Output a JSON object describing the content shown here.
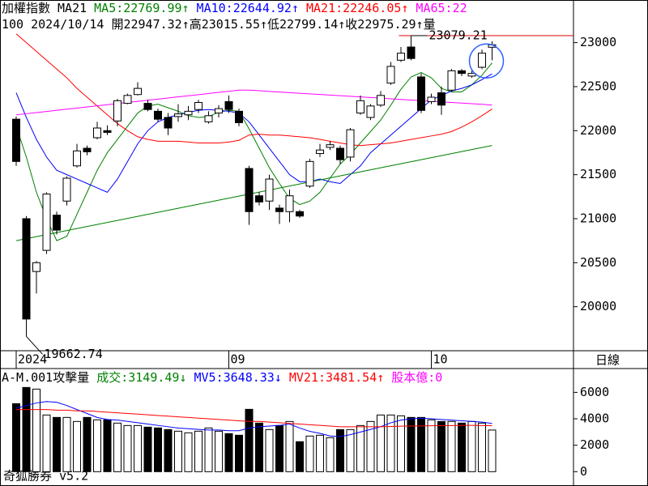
{
  "chart_data": [
    {
      "type": "candlestick",
      "title": "加權指數",
      "subtitle": "MA21",
      "info": "100 2024/10/14 開22947.32↑高23015.55↑低22799.14↑收22975.29↑量",
      "legend": [
        {
          "text": "MA5:22769.99↑",
          "color": "#008000"
        },
        {
          "text": "MA10:22644.92↑",
          "color": "#0000ff"
        },
        {
          "text": "MA21:22246.05↑",
          "color": "#ff0000"
        },
        {
          "text": "MA65:22",
          "color": "#ff00ff"
        }
      ],
      "categories": [
        "2024",
        null,
        null,
        null,
        null,
        null,
        null,
        null,
        null,
        null,
        null,
        null,
        null,
        null,
        null,
        null,
        null,
        null,
        null,
        null,
        null,
        "09",
        null,
        null,
        null,
        null,
        null,
        null,
        null,
        null,
        null,
        null,
        null,
        null,
        null,
        null,
        null,
        null,
        null,
        null,
        null,
        "10",
        null,
        null,
        null,
        null,
        null,
        null
      ],
      "open": [
        22130,
        21000,
        20400,
        20640,
        21040,
        21200,
        21600,
        21800,
        21920,
        22000,
        22110,
        22310,
        22410,
        22310,
        22220,
        22150,
        22160,
        22180,
        22240,
        22100,
        22200,
        22330,
        22220,
        21570,
        21260,
        21200,
        21120,
        21080,
        21080,
        21370,
        21740,
        21810,
        21800,
        21700,
        22200,
        22150,
        22290,
        22540,
        22800,
        22950,
        22610,
        22330,
        22430,
        22460,
        22680,
        22620,
        22720,
        22947.32
      ],
      "high": [
        22160,
        21030,
        20520,
        21300,
        21080,
        21480,
        21850,
        21830,
        22100,
        22060,
        22360,
        22420,
        22550,
        22350,
        22250,
        22200,
        22300,
        22280,
        22350,
        22220,
        22290,
        22400,
        22250,
        21600,
        21300,
        21500,
        21160,
        21330,
        21100,
        21680,
        21850,
        21880,
        21830,
        22030,
        22400,
        22300,
        22450,
        22780,
        22950,
        23079.21,
        22650,
        22420,
        22500,
        22700,
        22700,
        22680,
        22920,
        23015.55
      ],
      "low": [
        21600,
        19662.74,
        20150,
        20600,
        20820,
        21150,
        21580,
        21720,
        21900,
        21950,
        22050,
        22300,
        22400,
        22220,
        22100,
        21950,
        22100,
        22120,
        22200,
        22080,
        22150,
        22200,
        22050,
        20930,
        21150,
        21100,
        20940,
        20960,
        21010,
        21350,
        21700,
        21780,
        21620,
        21650,
        22180,
        22120,
        22270,
        22520,
        22780,
        22800,
        22200,
        22300,
        22180,
        22440,
        22620,
        22600,
        22700,
        22799.14
      ],
      "close": [
        21650,
        19860,
        20500,
        21280,
        20870,
        21460,
        21770,
        21760,
        22030,
        21980,
        22340,
        22400,
        22480,
        22240,
        22130,
        22030,
        22190,
        22220,
        22320,
        22170,
        22250,
        22240,
        22090,
        21080,
        21190,
        21450,
        21080,
        21260,
        21030,
        21650,
        21780,
        21840,
        21670,
        22010,
        22340,
        22280,
        22400,
        22730,
        22880,
        22820,
        22230,
        22380,
        22290,
        22680,
        22650,
        22650,
        22880,
        22975.29
      ],
      "high_labels": [
        null,
        null,
        null,
        null,
        null,
        null,
        null,
        null,
        null,
        null,
        null,
        null,
        null,
        null,
        null,
        null,
        null,
        null,
        null,
        null,
        null,
        null,
        null,
        null,
        null,
        null,
        null,
        null,
        null,
        null,
        null,
        null,
        null,
        null,
        null,
        null,
        null,
        null,
        null,
        "23079.21",
        null,
        null,
        null,
        null,
        null,
        null,
        null,
        null
      ],
      "low_labels": [
        null,
        "19662.74",
        null,
        null,
        null,
        null,
        null,
        null,
        null,
        null,
        null,
        null,
        null,
        null,
        null,
        null,
        null,
        null,
        null,
        null,
        null,
        null,
        null,
        null,
        null,
        null,
        null,
        null,
        null,
        null,
        null,
        null,
        null,
        null,
        null,
        null,
        null,
        null,
        null,
        null,
        null,
        null,
        null,
        null,
        null,
        null,
        null,
        null
      ],
      "series": [
        {
          "color": "#008000",
          "values": [
            22050,
            21700,
            21300,
            21000,
            20750,
            20800,
            21050,
            21300,
            21550,
            21750,
            21900,
            22050,
            22200,
            22280,
            22300,
            22260,
            22220,
            22170,
            22150,
            22160,
            22210,
            22230,
            22220,
            22020,
            21800,
            21580,
            21400,
            21230,
            21160,
            21200,
            21300,
            21460,
            21620,
            21730,
            21860,
            21990,
            22120,
            22290,
            22470,
            22610,
            22660,
            22600,
            22480,
            22440,
            22440,
            22520,
            22630,
            22769.99
          ]
        },
        {
          "color": "#0000ff",
          "values": [
            22430,
            22150,
            21900,
            21700,
            21550,
            21500,
            21450,
            21400,
            21350,
            21300,
            21450,
            21650,
            21850,
            22000,
            22100,
            22150,
            22180,
            22210,
            22230,
            22240,
            22230,
            22220,
            22200,
            22100,
            21950,
            21800,
            21650,
            21500,
            21420,
            21420,
            21450,
            21420,
            21400,
            21500,
            21600,
            21750,
            21850,
            21950,
            22050,
            22150,
            22250,
            22350,
            22400,
            22450,
            22480,
            22520,
            22580,
            22644.92
          ]
        },
        {
          "color": "#ff0000",
          "values": [
            23100,
            23000,
            22900,
            22800,
            22700,
            22600,
            22480,
            22380,
            22280,
            22180,
            22080,
            22000,
            21930,
            21900,
            21880,
            21880,
            21880,
            21870,
            21860,
            21860,
            21860,
            21870,
            21890,
            21950,
            21960,
            21950,
            21950,
            21940,
            21930,
            21920,
            21900,
            21880,
            21860,
            21840,
            21830,
            21840,
            21850,
            21860,
            21880,
            21900,
            21920,
            21940,
            21960,
            21990,
            22040,
            22100,
            22170,
            22246.05
          ]
        },
        {
          "color": "#ff00ff",
          "values": [
            22180,
            22193,
            22205,
            22218,
            22231,
            22244,
            22256,
            22269,
            22282,
            22295,
            22307,
            22320,
            22333,
            22345,
            22358,
            22371,
            22384,
            22396,
            22409,
            22422,
            22435,
            22447,
            22460,
            22460,
            22453,
            22446,
            22439,
            22432,
            22425,
            22418,
            22411,
            22404,
            22397,
            22390,
            22383,
            22376,
            22369,
            22362,
            22355,
            22348,
            22341,
            22334,
            22327,
            22320,
            22313,
            22306,
            22299,
            22290
          ]
        },
        {
          "color": "#008000",
          "values": [
            20750,
            20773,
            20796,
            20819,
            20842,
            20865,
            20888,
            20911,
            20934,
            20957,
            20980,
            21003,
            21026,
            21049,
            21072,
            21095,
            21118,
            21141,
            21164,
            21187,
            21210,
            21233,
            21256,
            21279,
            21302,
            21325,
            21348,
            21371,
            21394,
            21417,
            21440,
            21463,
            21486,
            21509,
            21532,
            21555,
            21578,
            21601,
            21624,
            21647,
            21670,
            21693,
            21716,
            21739,
            21762,
            21785,
            21808,
            21831
          ]
        }
      ],
      "ylim": [
        19500,
        23300
      ],
      "yticks": [
        20000,
        20500,
        21000,
        21500,
        22000,
        22500,
        23000
      ],
      "period": "日線"
    },
    {
      "type": "bar",
      "title": "A-M.001攻擊量",
      "legend": [
        {
          "text": "成交:3149.49↓",
          "color": "#008000"
        },
        {
          "text": "MV5:3648.33↓",
          "color": "#0000ff"
        },
        {
          "text": "MV21:3481.54↑",
          "color": "#ff0000"
        },
        {
          "text": "股本億:0",
          "color": "#ff00ff"
        }
      ],
      "values": [
        5144,
        6369,
        6246,
        4287,
        4103,
        4103,
        3797,
        4103,
        3919,
        3919,
        3674,
        3490,
        3490,
        3368,
        3307,
        3184,
        3062,
        2939,
        3062,
        3307,
        3062,
        2878,
        2756,
        4715,
        3674,
        3184,
        3490,
        3797,
        2266,
        2694,
        2756,
        2572,
        3184,
        3184,
        3490,
        3797,
        4287,
        4287,
        4225,
        4103,
        4103,
        3919,
        3797,
        3797,
        3674,
        3797,
        3674,
        3149.49
      ],
      "series": [
        {
          "color": "#0000ff",
          "values": [
            4800,
            5000,
            5200,
            5300,
            5250,
            5000,
            4700,
            4400,
            4100,
            3950,
            3900,
            3800,
            3700,
            3600,
            3500,
            3400,
            3300,
            3250,
            3200,
            3150,
            3150,
            3100,
            3100,
            3300,
            3400,
            3450,
            3500,
            3600,
            3300,
            3050,
            2900,
            2700,
            2650,
            2800,
            3000,
            3200,
            3400,
            3700,
            3900,
            4000,
            4050,
            4000,
            3950,
            3900,
            3850,
            3800,
            3750,
            3648.33
          ]
        },
        {
          "color": "#ff0000",
          "values": [
            4700,
            4700,
            4700,
            4700,
            4650,
            4650,
            4600,
            4600,
            4550,
            4500,
            4450,
            4400,
            4350,
            4300,
            4250,
            4200,
            4150,
            4100,
            4050,
            4000,
            3950,
            3900,
            3850,
            3800,
            3800,
            3750,
            3700,
            3650,
            3600,
            3550,
            3500,
            3450,
            3400,
            3400,
            3400,
            3400,
            3400,
            3420,
            3440,
            3450,
            3460,
            3470,
            3480,
            3490,
            3500,
            3500,
            3490,
            3481.54
          ]
        }
      ],
      "ylim": [
        -900,
        7800
      ],
      "yticks": [
        0,
        2000,
        4000,
        6000
      ],
      "footer": "奇狐勝券 v5.2"
    }
  ]
}
